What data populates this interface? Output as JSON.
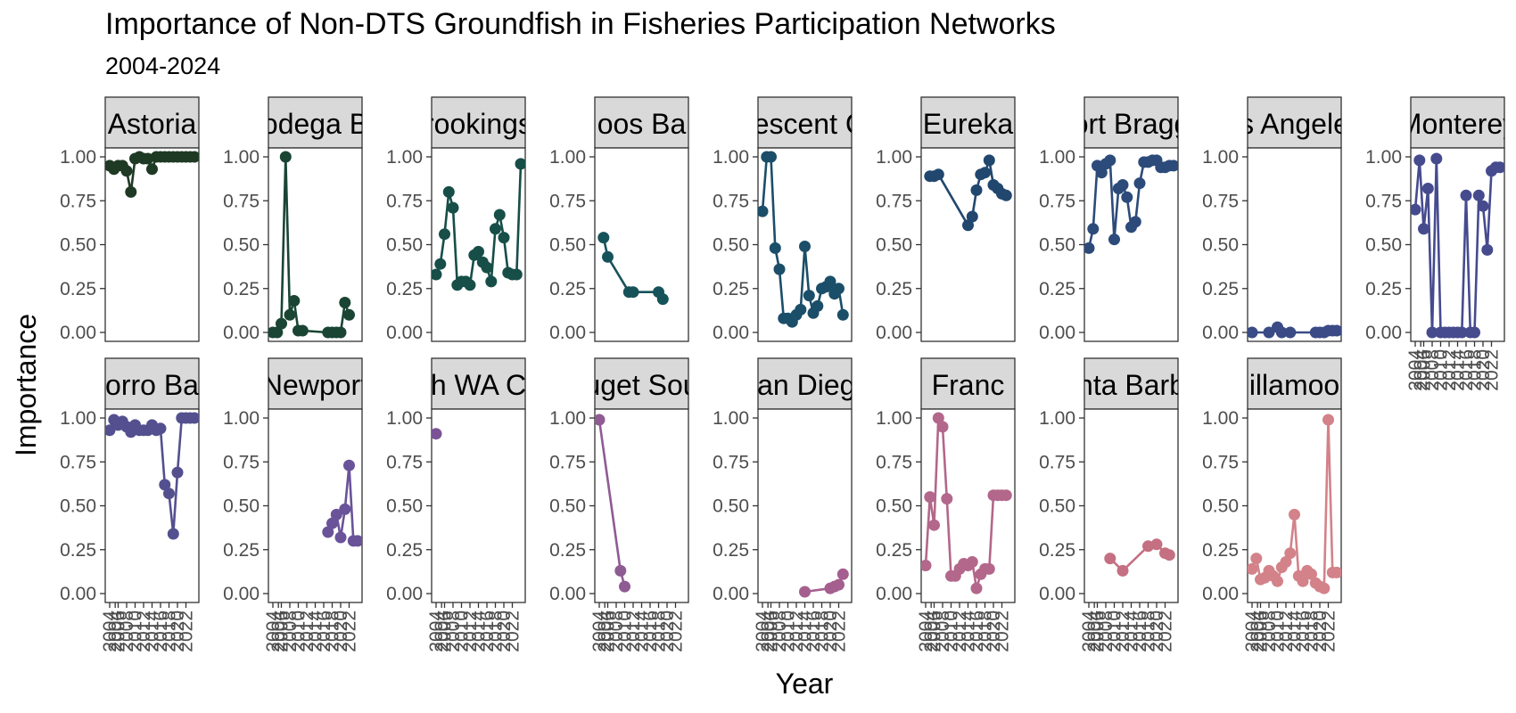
{
  "chart_data": {
    "type": "line",
    "title": "Importance of Non-DTS Groundfish in Fisheries Participation Networks",
    "subtitle": "2004-2024",
    "xlabel": "Year",
    "ylabel": "Importance",
    "ylim": [
      0,
      1
    ],
    "xlim": [
      2004,
      2024
    ],
    "y_ticks": [
      "0.00",
      "0.25",
      "0.50",
      "0.75",
      "1.00"
    ],
    "x_ticks": [
      "2004",
      "2004",
      "2006",
      "2008",
      "2010",
      "2012",
      "2014",
      "2016",
      "2018",
      "2020",
      "2022"
    ],
    "grid": false,
    "panels": [
      {
        "name": "Astoria",
        "strip": "Astoria",
        "color": "#1f3a24",
        "x": [
          2004,
          2005,
          2006,
          2007,
          2008,
          2009,
          2010,
          2011,
          2012,
          2013,
          2014,
          2015,
          2016,
          2017,
          2018,
          2019,
          2020,
          2021,
          2022,
          2023,
          2024
        ],
        "y": [
          0.95,
          0.93,
          0.95,
          0.95,
          0.92,
          0.8,
          0.99,
          1.0,
          0.99,
          0.99,
          0.93,
          1.0,
          1.0,
          1.0,
          1.0,
          1.0,
          1.0,
          1.0,
          1.0,
          1.0,
          1.0
        ]
      },
      {
        "name": "Bodega Bay",
        "strip": "odega B",
        "color": "#1a4534",
        "x": [
          2004,
          2005,
          2006,
          2007,
          2008,
          2009,
          2010,
          2011,
          2017,
          2018,
          2019,
          2020,
          2021,
          2022
        ],
        "y": [
          0.0,
          0.0,
          0.05,
          1.0,
          0.1,
          0.18,
          0.01,
          0.01,
          0.0,
          0.0,
          0.0,
          0.0,
          0.17,
          0.1
        ]
      },
      {
        "name": "Brookings",
        "strip": "rookings",
        "color": "#174e48",
        "x": [
          2004,
          2005,
          2006,
          2007,
          2008,
          2009,
          2010,
          2011,
          2012,
          2013,
          2014,
          2015,
          2016,
          2017,
          2018,
          2019,
          2020,
          2021,
          2022,
          2023,
          2024
        ],
        "y": [
          0.33,
          0.39,
          0.56,
          0.8,
          0.71,
          0.27,
          0.29,
          0.29,
          0.27,
          0.44,
          0.46,
          0.4,
          0.37,
          0.29,
          0.59,
          0.67,
          0.54,
          0.34,
          0.33,
          0.33,
          0.96
        ]
      },
      {
        "name": "Coos Bay",
        "strip": "oos Ba",
        "color": "#16525a",
        "x": [
          2005,
          2006,
          2011,
          2012,
          2018,
          2019
        ],
        "y": [
          0.54,
          0.43,
          0.23,
          0.23,
          0.23,
          0.19
        ]
      },
      {
        "name": "Crescent City",
        "strip": "rescent C",
        "color": "#1b4e68",
        "x": [
          2004,
          2005,
          2006,
          2007,
          2008,
          2009,
          2010,
          2011,
          2012,
          2013,
          2014,
          2015,
          2016,
          2017,
          2018,
          2019,
          2020,
          2021,
          2022,
          2023
        ],
        "y": [
          0.69,
          1.0,
          1.0,
          0.48,
          0.36,
          0.08,
          0.08,
          0.06,
          0.1,
          0.13,
          0.49,
          0.21,
          0.11,
          0.15,
          0.25,
          0.26,
          0.29,
          0.22,
          0.25,
          0.1
        ]
      },
      {
        "name": "Eureka",
        "strip": "Eureka",
        "color": "#21476e",
        "x": [
          2005,
          2006,
          2007,
          2014,
          2015,
          2016,
          2017,
          2018,
          2019,
          2020,
          2021,
          2022,
          2023
        ],
        "y": [
          0.89,
          0.89,
          0.9,
          0.61,
          0.66,
          0.81,
          0.9,
          0.91,
          0.98,
          0.84,
          0.82,
          0.79,
          0.78
        ]
      },
      {
        "name": "Fort Bragg",
        "strip": "ort Bragg",
        "color": "#2c4b7a",
        "x": [
          2004,
          2005,
          2006,
          2007,
          2008,
          2009,
          2010,
          2011,
          2012,
          2013,
          2014,
          2015,
          2016,
          2017,
          2018,
          2019,
          2020,
          2021,
          2022,
          2023,
          2024
        ],
        "y": [
          0.48,
          0.59,
          0.95,
          0.91,
          0.96,
          0.98,
          0.53,
          0.82,
          0.84,
          0.77,
          0.6,
          0.63,
          0.85,
          0.97,
          0.97,
          0.98,
          0.98,
          0.94,
          0.94,
          0.95,
          0.95
        ]
      },
      {
        "name": "Los Angeles",
        "strip": "s Angele",
        "color": "#3a4b86",
        "x": [
          2004,
          2008,
          2010,
          2011,
          2013,
          2019,
          2020,
          2021,
          2022,
          2023,
          2024
        ],
        "y": [
          0.0,
          0.0,
          0.03,
          0.0,
          0.0,
          0.0,
          0.0,
          0.0,
          0.01,
          0.01,
          0.01
        ]
      },
      {
        "name": "Monterey",
        "strip": "Monterey",
        "color": "#464b8e",
        "x": [
          2004,
          2005,
          2006,
          2007,
          2008,
          2009,
          2010,
          2011,
          2012,
          2013,
          2014,
          2015,
          2016,
          2017,
          2018,
          2019,
          2020,
          2021,
          2022,
          2023,
          2024
        ],
        "y": [
          0.7,
          0.98,
          0.59,
          0.82,
          0.0,
          0.99,
          0.0,
          0.0,
          0.0,
          0.0,
          0.0,
          0.0,
          0.78,
          0.0,
          0.0,
          0.78,
          0.72,
          0.47,
          0.92,
          0.94,
          0.94
        ]
      },
      {
        "name": "Morro Bay",
        "strip": "orro Ba",
        "color": "#54508f",
        "x": [
          2004,
          2005,
          2006,
          2007,
          2008,
          2009,
          2010,
          2011,
          2012,
          2013,
          2014,
          2015,
          2016,
          2017,
          2018,
          2019,
          2020,
          2021,
          2022,
          2023,
          2024
        ],
        "y": [
          0.93,
          0.99,
          0.96,
          0.98,
          0.95,
          0.92,
          0.96,
          0.93,
          0.93,
          0.93,
          0.96,
          0.93,
          0.94,
          0.62,
          0.57,
          0.34,
          0.69,
          1.0,
          1.0,
          1.0,
          1.0
        ]
      },
      {
        "name": "Newport",
        "strip": "Newport",
        "color": "#6a5399",
        "x": [
          2017,
          2018,
          2019,
          2020,
          2021,
          2022,
          2023,
          2024
        ],
        "y": [
          0.35,
          0.4,
          0.45,
          0.32,
          0.48,
          0.73,
          0.3,
          0.3
        ]
      },
      {
        "name": "North WA Coast",
        "strip": "h WA C",
        "color": "#7a5397",
        "x": [
          2004
        ],
        "y": [
          0.91
        ]
      },
      {
        "name": "Puget Sound",
        "strip": "uget Sou",
        "color": "#8f5b93",
        "x": [
          2004,
          2009,
          2010
        ],
        "y": [
          0.99,
          0.13,
          0.04
        ]
      },
      {
        "name": "San Diego",
        "strip": "San Diego",
        "color": "#a45f8f",
        "x": [
          2014,
          2020,
          2021,
          2022,
          2023
        ],
        "y": [
          0.01,
          0.03,
          0.04,
          0.05,
          0.11
        ]
      },
      {
        "name": "San Francisco",
        "strip": "Franc",
        "color": "#b3678b",
        "x": [
          2004,
          2005,
          2006,
          2007,
          2008,
          2009,
          2010,
          2011,
          2012,
          2013,
          2014,
          2015,
          2016,
          2017,
          2018,
          2019,
          2020,
          2021,
          2022,
          2023
        ],
        "y": [
          0.16,
          0.55,
          0.39,
          1.0,
          0.95,
          0.54,
          0.1,
          0.1,
          0.14,
          0.17,
          0.16,
          0.18,
          0.03,
          0.11,
          0.14,
          0.14,
          0.56,
          0.56,
          0.56,
          0.56
        ]
      },
      {
        "name": "Santa Barbara",
        "strip": "nta Barb",
        "color": "#c46f82",
        "x": [
          2009,
          2012,
          2018,
          2020,
          2022,
          2023
        ],
        "y": [
          0.2,
          0.13,
          0.27,
          0.28,
          0.23,
          0.22
        ]
      },
      {
        "name": "Tillamook",
        "strip": "illamoo",
        "color": "#d3828a",
        "x": [
          2004,
          2005,
          2006,
          2007,
          2008,
          2009,
          2010,
          2011,
          2012,
          2013,
          2014,
          2015,
          2016,
          2017,
          2018,
          2019,
          2020,
          2021,
          2022,
          2023,
          2024
        ],
        "y": [
          0.14,
          0.2,
          0.08,
          0.09,
          0.13,
          0.1,
          0.07,
          0.15,
          0.18,
          0.23,
          0.45,
          0.1,
          0.07,
          0.13,
          0.11,
          0.06,
          0.04,
          0.03,
          0.99,
          0.12,
          0.12
        ]
      }
    ]
  }
}
